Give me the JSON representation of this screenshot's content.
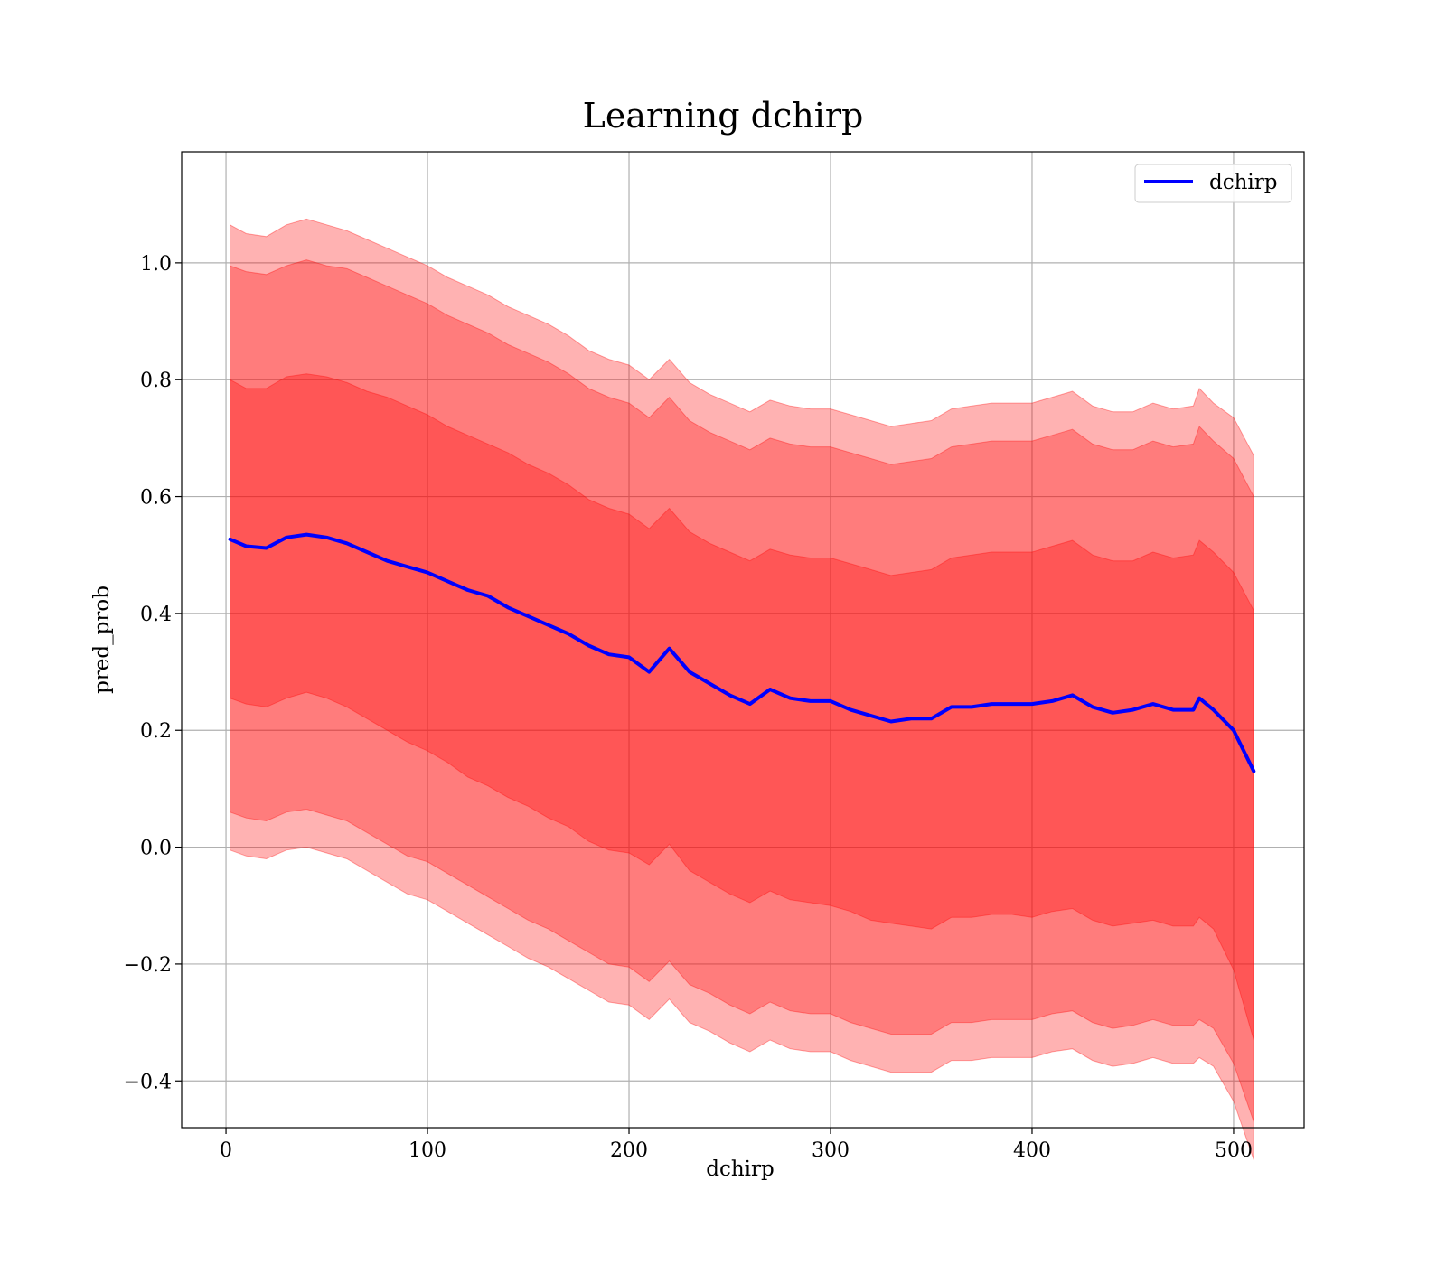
{
  "chart_data": {
    "type": "line",
    "title": "Learning dchirp",
    "xlabel": "dchirp",
    "ylabel": "pred_prob",
    "xlim": [
      -22,
      535
    ],
    "ylim": [
      -0.48,
      1.19
    ],
    "xticks": [
      0,
      100,
      200,
      300,
      400,
      500
    ],
    "yticks": [
      -0.4,
      -0.2,
      0.0,
      0.2,
      0.4,
      0.6,
      0.8,
      1.0
    ],
    "grid": true,
    "legend": {
      "placement": "upper right",
      "entries": [
        "dchirp"
      ]
    },
    "colors": {
      "line": "#0000ff",
      "band": "#ff0000",
      "band_opacity": 0.3
    },
    "series": [
      {
        "name": "dchirp",
        "x": [
          2,
          10,
          20,
          30,
          40,
          50,
          60,
          70,
          80,
          90,
          100,
          110,
          120,
          130,
          140,
          150,
          160,
          170,
          180,
          190,
          200,
          210,
          220,
          230,
          240,
          250,
          260,
          270,
          280,
          290,
          300,
          310,
          320,
          330,
          340,
          350,
          360,
          370,
          380,
          390,
          400,
          410,
          420,
          430,
          440,
          450,
          460,
          470,
          480,
          483,
          490,
          500,
          510
        ],
        "values": [
          0.527,
          0.515,
          0.512,
          0.53,
          0.535,
          0.53,
          0.52,
          0.505,
          0.49,
          0.48,
          0.47,
          0.455,
          0.44,
          0.43,
          0.41,
          0.395,
          0.38,
          0.365,
          0.345,
          0.33,
          0.325,
          0.3,
          0.34,
          0.3,
          0.28,
          0.26,
          0.245,
          0.27,
          0.255,
          0.25,
          0.25,
          0.235,
          0.225,
          0.215,
          0.22,
          0.22,
          0.24,
          0.24,
          0.245,
          0.245,
          0.245,
          0.25,
          0.26,
          0.24,
          0.23,
          0.235,
          0.245,
          0.235,
          0.235,
          0.255,
          0.235,
          0.2,
          0.13
        ],
        "bands": [
          {
            "level": 1,
            "lower": [
              0.255,
              0.245,
              0.24,
              0.255,
              0.265,
              0.255,
              0.24,
              0.22,
              0.2,
              0.18,
              0.165,
              0.145,
              0.12,
              0.105,
              0.085,
              0.07,
              0.05,
              0.035,
              0.01,
              -0.005,
              -0.01,
              -0.03,
              0.005,
              -0.04,
              -0.06,
              -0.08,
              -0.095,
              -0.075,
              -0.09,
              -0.095,
              -0.1,
              -0.11,
              -0.125,
              -0.13,
              -0.135,
              -0.14,
              -0.12,
              -0.12,
              -0.115,
              -0.115,
              -0.12,
              -0.11,
              -0.105,
              -0.125,
              -0.135,
              -0.13,
              -0.125,
              -0.135,
              -0.135,
              -0.12,
              -0.14,
              -0.21,
              -0.33
            ],
            "upper": [
              0.8,
              0.785,
              0.785,
              0.805,
              0.81,
              0.805,
              0.795,
              0.78,
              0.77,
              0.755,
              0.74,
              0.72,
              0.705,
              0.69,
              0.675,
              0.655,
              0.64,
              0.62,
              0.595,
              0.58,
              0.57,
              0.545,
              0.58,
              0.54,
              0.52,
              0.505,
              0.49,
              0.51,
              0.5,
              0.495,
              0.495,
              0.485,
              0.475,
              0.465,
              0.47,
              0.475,
              0.495,
              0.5,
              0.505,
              0.505,
              0.505,
              0.515,
              0.525,
              0.5,
              0.49,
              0.49,
              0.505,
              0.495,
              0.5,
              0.525,
              0.505,
              0.47,
              0.405
            ]
          },
          {
            "level": 2,
            "lower": [
              0.06,
              0.05,
              0.045,
              0.06,
              0.065,
              0.055,
              0.045,
              0.025,
              0.005,
              -0.015,
              -0.025,
              -0.045,
              -0.065,
              -0.085,
              -0.105,
              -0.125,
              -0.14,
              -0.16,
              -0.18,
              -0.2,
              -0.205,
              -0.23,
              -0.195,
              -0.235,
              -0.25,
              -0.27,
              -0.285,
              -0.265,
              -0.28,
              -0.285,
              -0.285,
              -0.3,
              -0.31,
              -0.32,
              -0.32,
              -0.32,
              -0.3,
              -0.3,
              -0.295,
              -0.295,
              -0.295,
              -0.285,
              -0.28,
              -0.3,
              -0.31,
              -0.305,
              -0.295,
              -0.305,
              -0.305,
              -0.295,
              -0.31,
              -0.37,
              -0.47
            ],
            "upper": [
              0.995,
              0.985,
              0.98,
              0.995,
              1.005,
              0.995,
              0.99,
              0.975,
              0.96,
              0.945,
              0.93,
              0.91,
              0.895,
              0.88,
              0.86,
              0.845,
              0.83,
              0.81,
              0.785,
              0.77,
              0.76,
              0.735,
              0.77,
              0.73,
              0.71,
              0.695,
              0.68,
              0.7,
              0.69,
              0.685,
              0.685,
              0.675,
              0.665,
              0.655,
              0.66,
              0.665,
              0.685,
              0.69,
              0.695,
              0.695,
              0.695,
              0.705,
              0.715,
              0.69,
              0.68,
              0.68,
              0.695,
              0.685,
              0.69,
              0.72,
              0.695,
              0.665,
              0.6
            ]
          },
          {
            "level": 3,
            "lower": [
              -0.005,
              -0.015,
              -0.02,
              -0.005,
              0.0,
              -0.01,
              -0.02,
              -0.04,
              -0.06,
              -0.08,
              -0.09,
              -0.11,
              -0.13,
              -0.15,
              -0.17,
              -0.19,
              -0.205,
              -0.225,
              -0.245,
              -0.265,
              -0.27,
              -0.295,
              -0.26,
              -0.3,
              -0.315,
              -0.335,
              -0.35,
              -0.33,
              -0.345,
              -0.35,
              -0.35,
              -0.365,
              -0.375,
              -0.385,
              -0.385,
              -0.385,
              -0.365,
              -0.365,
              -0.36,
              -0.36,
              -0.36,
              -0.35,
              -0.345,
              -0.365,
              -0.375,
              -0.37,
              -0.36,
              -0.37,
              -0.37,
              -0.36,
              -0.375,
              -0.435,
              -0.535
            ],
            "upper": [
              1.065,
              1.05,
              1.045,
              1.065,
              1.075,
              1.065,
              1.055,
              1.04,
              1.025,
              1.01,
              0.995,
              0.975,
              0.96,
              0.945,
              0.925,
              0.91,
              0.895,
              0.875,
              0.85,
              0.835,
              0.825,
              0.8,
              0.835,
              0.795,
              0.775,
              0.76,
              0.745,
              0.765,
              0.755,
              0.75,
              0.75,
              0.74,
              0.73,
              0.72,
              0.725,
              0.73,
              0.75,
              0.755,
              0.76,
              0.76,
              0.76,
              0.77,
              0.78,
              0.755,
              0.745,
              0.745,
              0.76,
              0.75,
              0.755,
              0.785,
              0.76,
              0.735,
              0.67
            ]
          }
        ]
      }
    ]
  }
}
